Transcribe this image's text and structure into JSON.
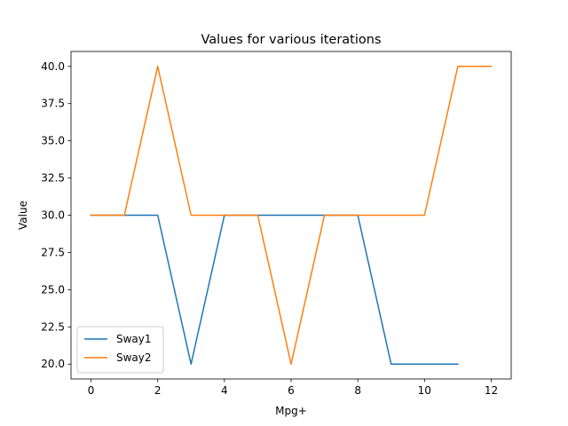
{
  "chart_data": {
    "type": "line",
    "title": "Values for various iterations",
    "xlabel": "Mpg+",
    "ylabel": "Value",
    "xlim": [
      -0.6,
      12.6
    ],
    "ylim": [
      19.0,
      41.0
    ],
    "xticks": [
      0,
      2,
      4,
      6,
      8,
      10,
      12
    ],
    "xtick_labels": [
      "0",
      "2",
      "4",
      "6",
      "8",
      "10",
      "12"
    ],
    "yticks": [
      20.0,
      22.5,
      25.0,
      27.5,
      30.0,
      32.5,
      35.0,
      37.5,
      40.0
    ],
    "ytick_labels": [
      "20.0",
      "22.5",
      "25.0",
      "27.5",
      "30.0",
      "32.5",
      "35.0",
      "37.5",
      "40.0"
    ],
    "grid": false,
    "legend_position": "lower-left",
    "series": [
      {
        "name": "Sway1",
        "color": "#1f77b4",
        "x": [
          0,
          1,
          2,
          3,
          4,
          5,
          6,
          7,
          8,
          9,
          10,
          11
        ],
        "y": [
          30,
          30,
          30,
          20,
          30,
          30,
          30,
          30,
          30,
          20,
          20,
          20
        ]
      },
      {
        "name": "Sway2",
        "color": "#ff7f0e",
        "x": [
          0,
          1,
          2,
          3,
          4,
          5,
          6,
          7,
          8,
          9,
          10,
          11,
          12
        ],
        "y": [
          30,
          30,
          40,
          30,
          30,
          30,
          20,
          30,
          30,
          30,
          30,
          40,
          40
        ]
      }
    ]
  }
}
